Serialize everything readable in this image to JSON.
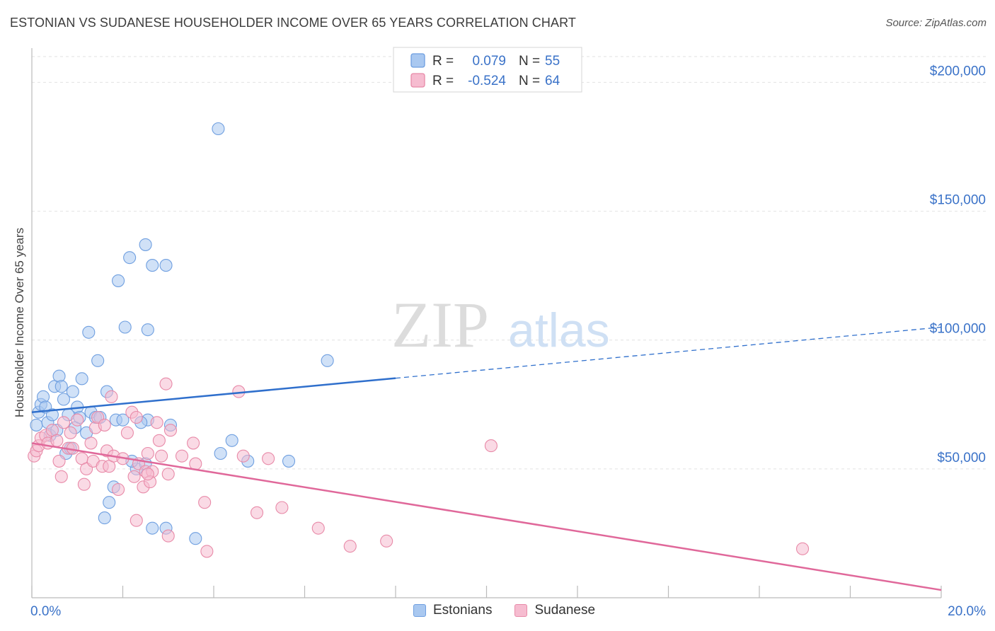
{
  "header": {
    "title": "ESTONIAN VS SUDANESE HOUSEHOLDER INCOME OVER 65 YEARS CORRELATION CHART",
    "source": "Source: ZipAtlas.com"
  },
  "watermark": {
    "zip": "ZIP",
    "atlas": "atlas"
  },
  "chart_data": {
    "type": "scatter",
    "ylabel": "Householder Income Over 65 years",
    "xlim": [
      0,
      20
    ],
    "ylim": [
      0,
      210000
    ],
    "x_tick_labels": {
      "min": "0.0%",
      "max": "20.0%"
    },
    "y_ticks": [
      {
        "value": 50000,
        "label": "$50,000"
      },
      {
        "value": 100000,
        "label": "$100,000"
      },
      {
        "value": 150000,
        "label": "$150,000"
      },
      {
        "value": 200000,
        "label": "$200,000"
      }
    ],
    "grid": true,
    "legend_position": "top-center",
    "stats": [
      {
        "r_label": "R =",
        "r_value": "0.079",
        "n_label": "N =",
        "n_value": "55"
      },
      {
        "r_label": "R =",
        "r_value": "-0.524",
        "n_label": "N =",
        "n_value": "64"
      }
    ],
    "series": [
      {
        "name": "Estonians",
        "color": "#6f9fe0",
        "fill": "#a9c8f0",
        "line_color": "#2f6fcc",
        "trend": {
          "x0": 0,
          "y0": 72000,
          "x_solid_end": 8,
          "x1": 20,
          "y1": 105000
        },
        "points": [
          [
            0.1,
            67000
          ],
          [
            0.15,
            72000
          ],
          [
            0.2,
            75000
          ],
          [
            0.25,
            78000
          ],
          [
            0.3,
            74000
          ],
          [
            0.35,
            68000
          ],
          [
            0.4,
            63000
          ],
          [
            0.45,
            71000
          ],
          [
            0.5,
            82000
          ],
          [
            0.55,
            65000
          ],
          [
            0.6,
            86000
          ],
          [
            0.65,
            82000
          ],
          [
            0.7,
            77000
          ],
          [
            0.75,
            56000
          ],
          [
            0.8,
            71000
          ],
          [
            0.85,
            58000
          ],
          [
            0.9,
            80000
          ],
          [
            0.95,
            66000
          ],
          [
            1.0,
            74000
          ],
          [
            1.05,
            70000
          ],
          [
            1.1,
            85000
          ],
          [
            1.2,
            64000
          ],
          [
            1.25,
            103000
          ],
          [
            1.3,
            72000
          ],
          [
            1.4,
            70000
          ],
          [
            1.45,
            92000
          ],
          [
            1.5,
            70000
          ],
          [
            1.65,
            80000
          ],
          [
            1.7,
            37000
          ],
          [
            1.6,
            31000
          ],
          [
            1.85,
            69000
          ],
          [
            1.8,
            43000
          ],
          [
            1.9,
            123000
          ],
          [
            2.05,
            105000
          ],
          [
            2.3,
            50000
          ],
          [
            2.2,
            53000
          ],
          [
            2.0,
            69000
          ],
          [
            2.5,
            52000
          ],
          [
            2.55,
            69000
          ],
          [
            2.4,
            68000
          ],
          [
            2.15,
            132000
          ],
          [
            2.5,
            137000
          ],
          [
            2.55,
            104000
          ],
          [
            2.65,
            129000
          ],
          [
            2.95,
            129000
          ],
          [
            2.65,
            27000
          ],
          [
            2.95,
            27000
          ],
          [
            3.05,
            67000
          ],
          [
            3.6,
            23000
          ],
          [
            4.1,
            182000
          ],
          [
            4.15,
            56000
          ],
          [
            4.4,
            61000
          ],
          [
            4.75,
            53000
          ],
          [
            5.65,
            53000
          ],
          [
            6.5,
            92000
          ]
        ]
      },
      {
        "name": "Sudanese",
        "color": "#e88aa8",
        "fill": "#f6bcd0",
        "line_color": "#e0689a",
        "trend": {
          "x0": 0,
          "y0": 60000,
          "x1": 20,
          "y1": 3000
        },
        "points": [
          [
            0.05,
            55000
          ],
          [
            0.1,
            57000
          ],
          [
            0.15,
            59000
          ],
          [
            0.2,
            62000
          ],
          [
            0.3,
            63000
          ],
          [
            0.35,
            60000
          ],
          [
            0.45,
            65000
          ],
          [
            0.55,
            61000
          ],
          [
            0.6,
            53000
          ],
          [
            0.65,
            47000
          ],
          [
            0.7,
            68000
          ],
          [
            0.8,
            58000
          ],
          [
            0.85,
            64000
          ],
          [
            0.9,
            58000
          ],
          [
            1.0,
            69000
          ],
          [
            1.1,
            54000
          ],
          [
            1.15,
            44000
          ],
          [
            1.2,
            50000
          ],
          [
            1.3,
            60000
          ],
          [
            1.35,
            53000
          ],
          [
            1.4,
            66000
          ],
          [
            1.45,
            70000
          ],
          [
            1.55,
            51000
          ],
          [
            1.6,
            67000
          ],
          [
            1.65,
            57000
          ],
          [
            1.7,
            51000
          ],
          [
            1.75,
            78000
          ],
          [
            1.8,
            55000
          ],
          [
            1.9,
            42000
          ],
          [
            2.0,
            54000
          ],
          [
            2.1,
            64000
          ],
          [
            2.2,
            72000
          ],
          [
            2.25,
            47000
          ],
          [
            2.3,
            70000
          ],
          [
            2.35,
            52000
          ],
          [
            2.45,
            43000
          ],
          [
            2.5,
            49000
          ],
          [
            2.55,
            56000
          ],
          [
            2.65,
            49000
          ],
          [
            2.75,
            68000
          ],
          [
            2.85,
            55000
          ],
          [
            2.6,
            45000
          ],
          [
            2.3,
            30000
          ],
          [
            2.8,
            61000
          ],
          [
            2.95,
            83000
          ],
          [
            3.05,
            65000
          ],
          [
            3.0,
            24000
          ],
          [
            3.3,
            55000
          ],
          [
            3.55,
            60000
          ],
          [
            3.6,
            52000
          ],
          [
            3.8,
            37000
          ],
          [
            3.85,
            18000
          ],
          [
            4.55,
            80000
          ],
          [
            4.65,
            55000
          ],
          [
            4.95,
            33000
          ],
          [
            5.2,
            54000
          ],
          [
            5.5,
            35000
          ],
          [
            6.3,
            27000
          ],
          [
            7.0,
            20000
          ],
          [
            7.8,
            22000
          ],
          [
            10.1,
            59000
          ],
          [
            16.95,
            19000
          ],
          [
            2.55,
            48000
          ],
          [
            3.0,
            48000
          ]
        ]
      }
    ]
  }
}
